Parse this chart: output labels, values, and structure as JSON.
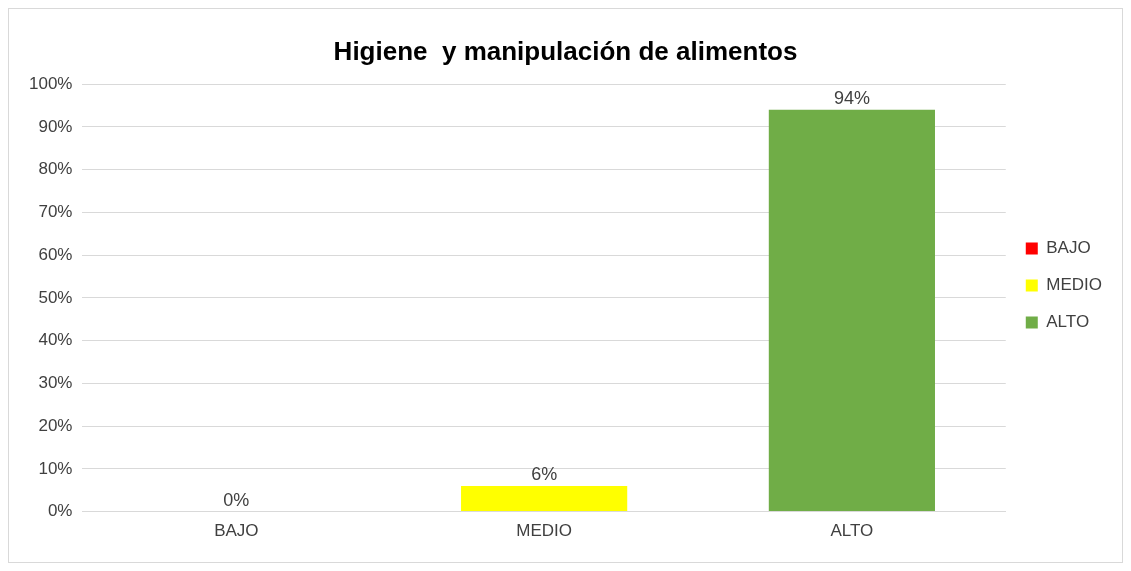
{
  "chart_data": {
    "type": "bar",
    "title": "Higiene  y manipulación de alimentos",
    "categories": [
      "BAJO",
      "MEDIO",
      "ALTO"
    ],
    "series": [
      {
        "name": "BAJO",
        "color": "#ff0000",
        "values": [
          0,
          null,
          null
        ],
        "value_labels": [
          "0%",
          null,
          null
        ]
      },
      {
        "name": "MEDIO",
        "color": "#ffff00",
        "values": [
          null,
          6,
          null
        ],
        "value_labels": [
          null,
          "6%",
          null
        ]
      },
      {
        "name": "ALTO",
        "color": "#70ad47",
        "values": [
          null,
          null,
          94
        ],
        "value_labels": [
          null,
          null,
          "94%"
        ]
      }
    ],
    "ylim": [
      0,
      100
    ],
    "yticks": [
      {
        "value": 0,
        "label": "0%"
      },
      {
        "value": 10,
        "label": "10%"
      },
      {
        "value": 20,
        "label": "20%"
      },
      {
        "value": 30,
        "label": "30%"
      },
      {
        "value": 40,
        "label": "40%"
      },
      {
        "value": 50,
        "label": "50%"
      },
      {
        "value": 60,
        "label": "60%"
      },
      {
        "value": 70,
        "label": "70%"
      },
      {
        "value": 80,
        "label": "80%"
      },
      {
        "value": 90,
        "label": "90%"
      },
      {
        "value": 100,
        "label": "100%"
      }
    ],
    "grid": "y",
    "legend": "right"
  }
}
